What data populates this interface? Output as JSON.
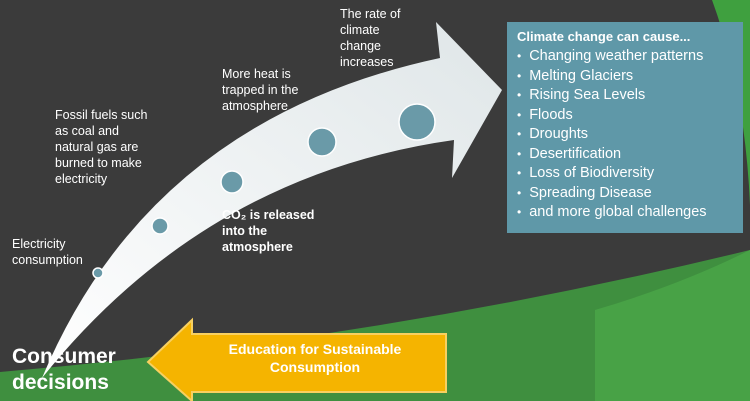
{
  "steps": [
    {
      "label": "Electricity consumption"
    },
    {
      "label": "Fossil fuels such as coal and natural gas are burned to make electricity"
    },
    {
      "label": "More heat is trapped in the atmosphere"
    },
    {
      "label": "The rate of climate change increases"
    }
  ],
  "emission_label": "CO₂ is released into the atmosphere",
  "effects": {
    "title": "Climate change can cause...",
    "items": [
      "Changing weather patterns",
      "Melting Glaciers",
      "Rising Sea Levels",
      "Floods",
      "Droughts",
      "Desertification",
      "Loss of Biodiversity",
      "Spreading Disease",
      "and more global challenges"
    ]
  },
  "start_label": "Consumer decisions",
  "education_label": "Education for Sustainable Consumption"
}
